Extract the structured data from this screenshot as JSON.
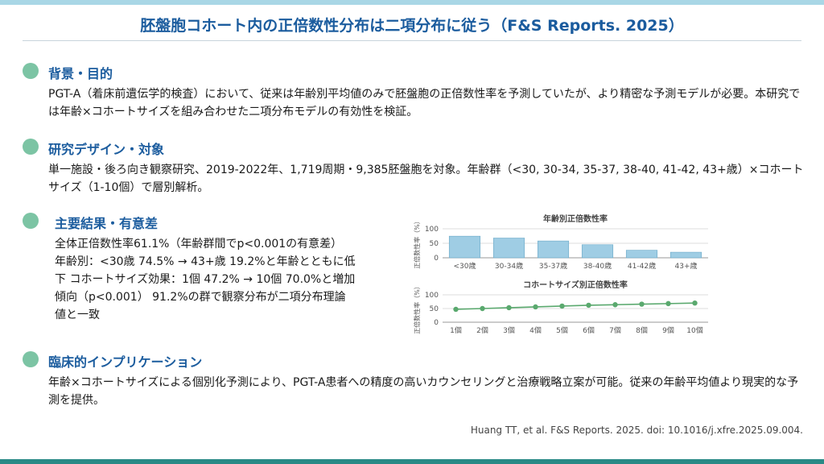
{
  "title": "胚盤胞コホート内の正倍数性分布は二項分布に従う（F&S Reports. 2025）",
  "sections": {
    "background": {
      "heading": "背景・目的",
      "text": "PGT-A（着床前遺伝学的検査）において、従来は年齢別平均値のみで胚盤胞の正倍数性率を予測していたが、より精密な予測モデルが必要。本研究では年齢×コホートサイズを組み合わせた二項分布モデルの有効性を検証。"
    },
    "design": {
      "heading": "研究デザイン・対象",
      "text": "単一施設・後ろ向き観察研究、2019-2022年、1,719周期・9,385胚盤胞を対象。年齢群（<30, 30-34, 35-37, 38-40, 41-42, 43+歳）×コホートサイズ（1-10個）で層別解析。"
    },
    "results": {
      "heading": "主要結果・有意差",
      "line1": "全体正倍数性率61.1%（年齢群間でp<0.001の有意差）",
      "line2": "年齢別：<30歳 74.5% → 43+歳 19.2%と年齢とともに低",
      "line3": "下 コホートサイズ効果：1個 47.2% → 10個 70.0%と増加",
      "line4": "傾向（p<0.001） 91.2%の群で観察分布が二項分布理論",
      "line5": "値と一致"
    },
    "implications": {
      "heading": "臨床的インプリケーション",
      "text": "年齢×コホートサイズによる個別化予測により、PGT-A患者への精度の高いカウンセリングと治療戦略立案が可能。従来の年齢平均値より現実的な予測を提供。"
    }
  },
  "citation": "Huang TT, et al. F&S Reports. 2025. doi: 10.1016/j.xfre.2025.09.004.",
  "colors": {
    "accent": "#1b5c9e",
    "dot": "#7cc4a4",
    "bar": "#9fcde4",
    "line": "#5aa96e"
  },
  "chart_data": [
    {
      "type": "bar",
      "title": "年齢別正倍数性率",
      "ylabel": "正倍数性率（%）",
      "xlabel": "",
      "categories": [
        "<30歳",
        "30-34歳",
        "35-37歳",
        "38-40歳",
        "41-42歳",
        "43+歳"
      ],
      "values": [
        74.5,
        68,
        58,
        45,
        26,
        19.2
      ],
      "ylim": [
        0,
        100
      ],
      "yticks": [
        "0",
        "50",
        "100"
      ],
      "grid": true
    },
    {
      "type": "line",
      "title": "コホートサイズ別正倍数性率",
      "ylabel": "正倍数性率（%）",
      "xlabel": "",
      "categories": [
        "1個",
        "2個",
        "3個",
        "4個",
        "5個",
        "6個",
        "7個",
        "8個",
        "9個",
        "10個"
      ],
      "values": [
        47.2,
        50,
        53,
        56,
        59,
        62,
        64,
        66,
        68,
        70.0
      ],
      "ylim": [
        0,
        100
      ],
      "yticks": [
        "0",
        "50",
        "100"
      ],
      "grid": true
    }
  ]
}
